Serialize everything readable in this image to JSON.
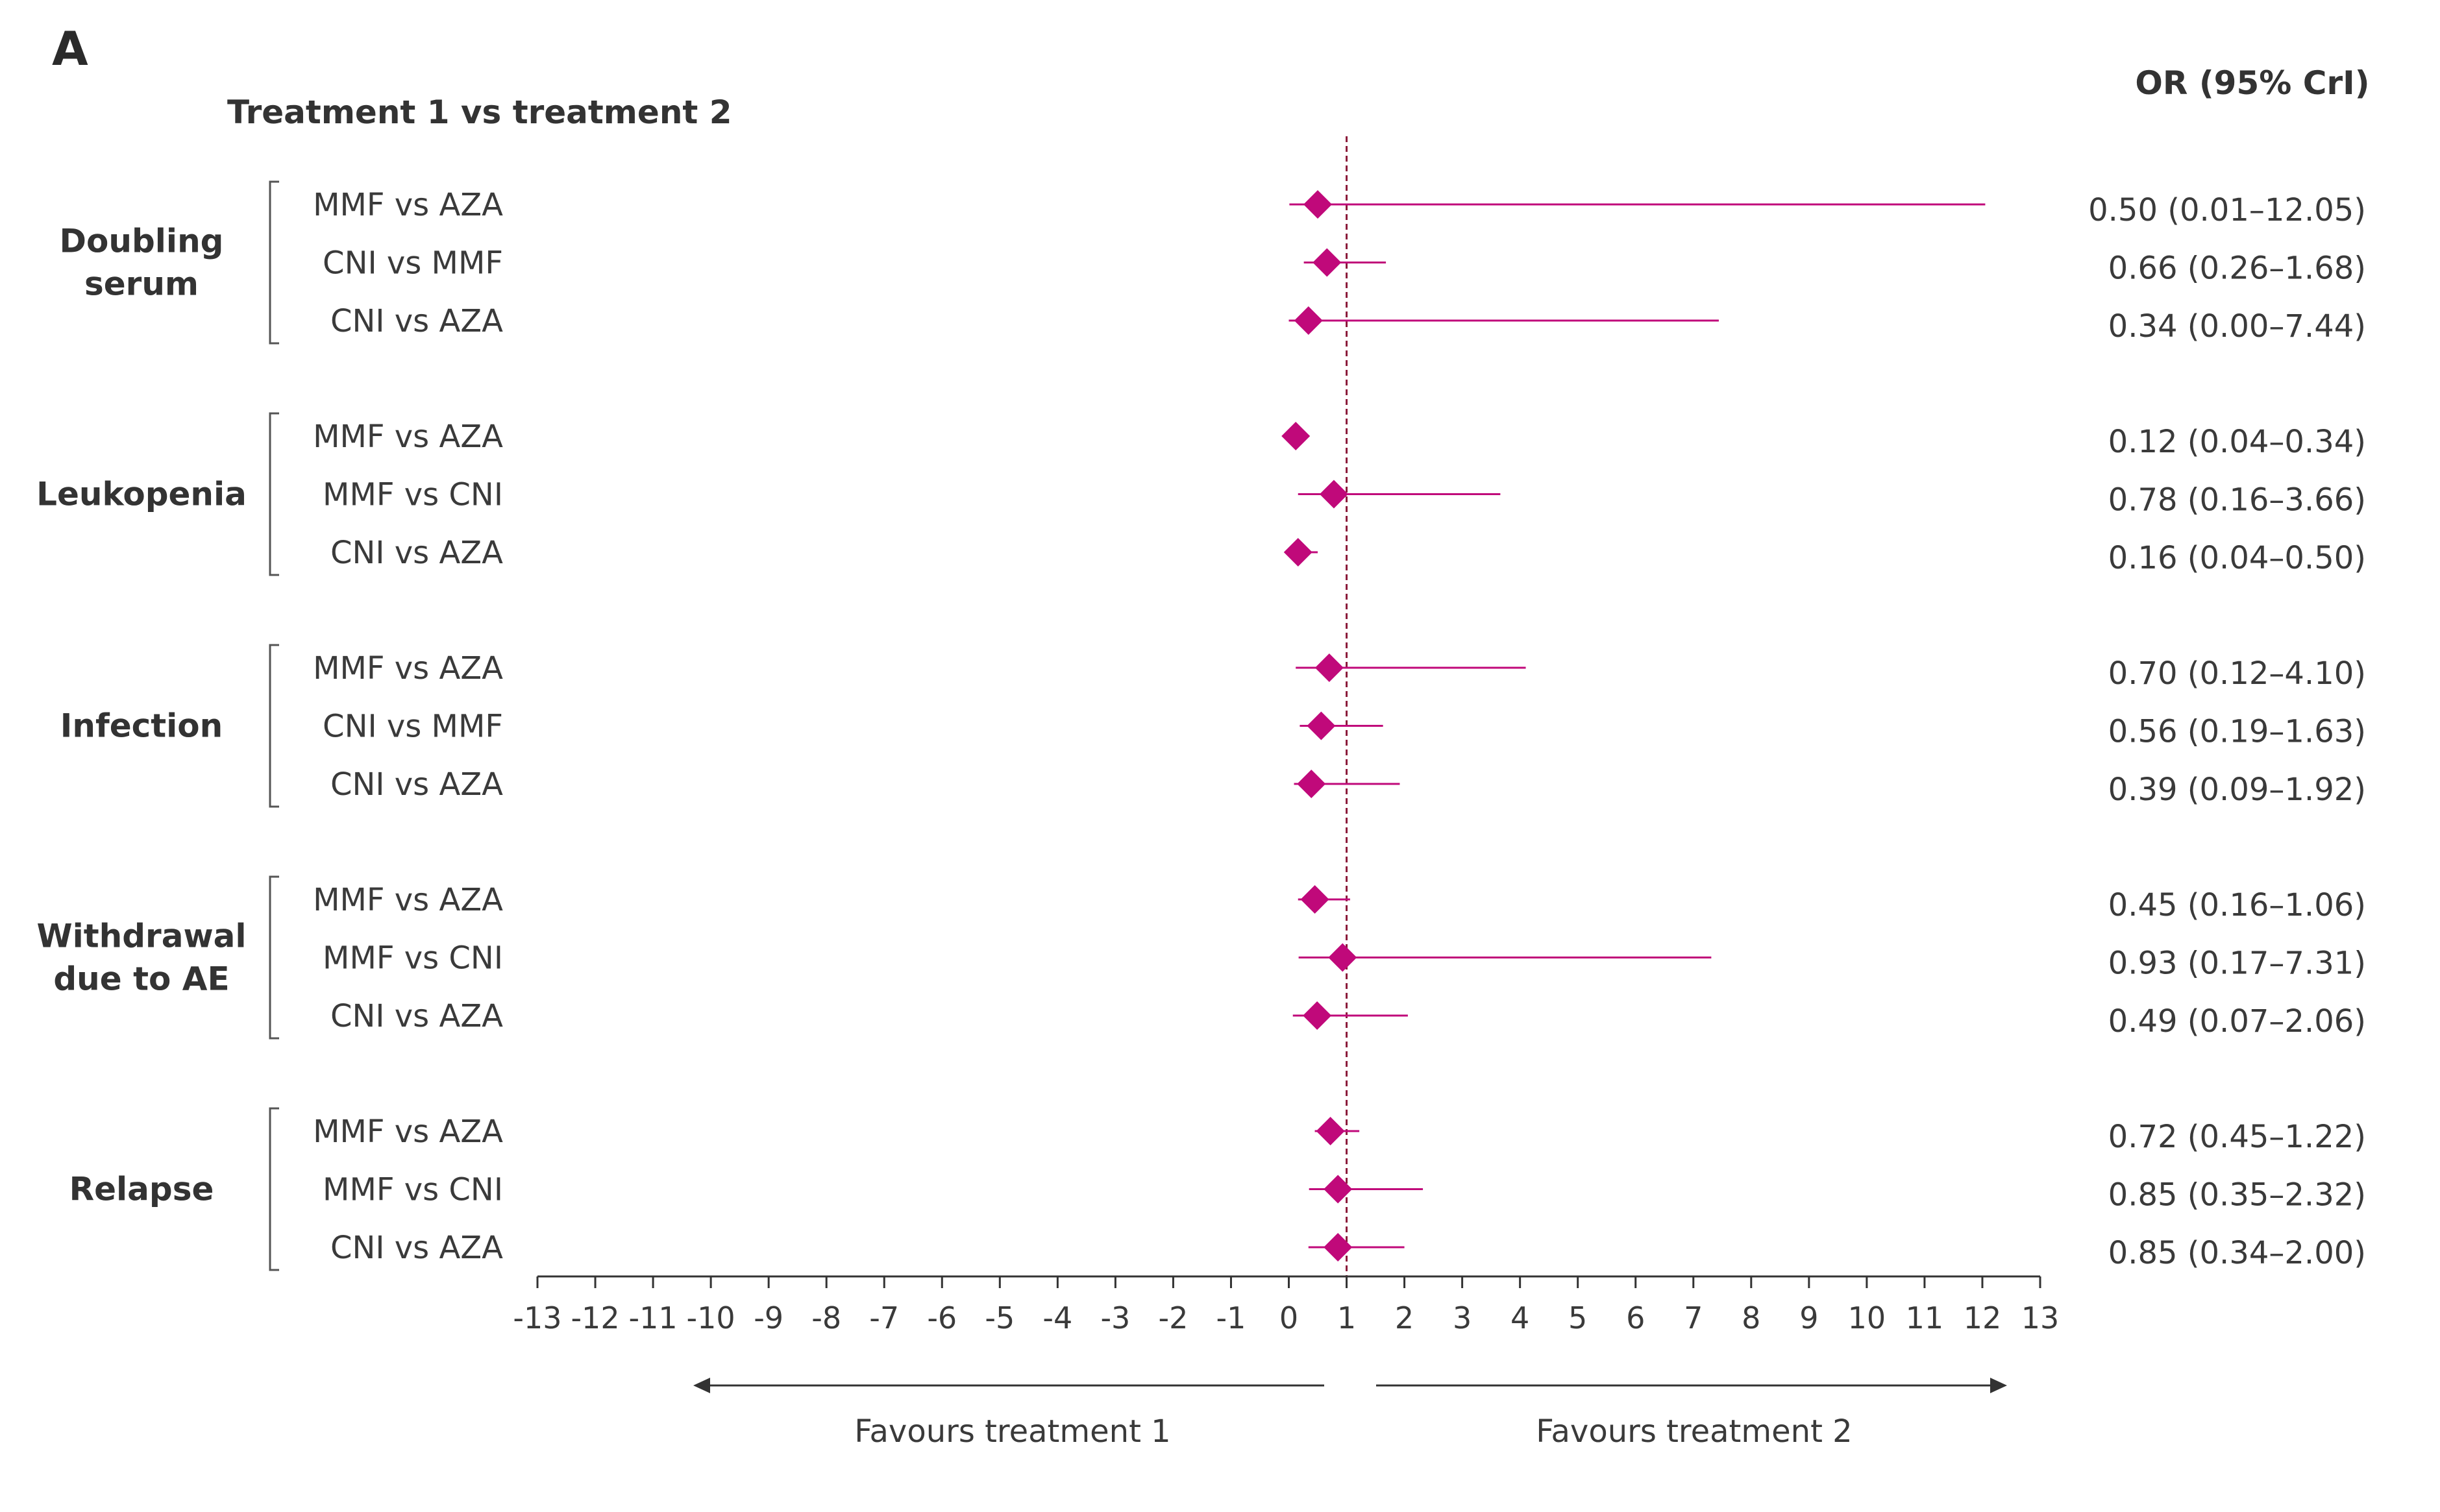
{
  "panel_label": "A",
  "header_left": "Treatment 1 vs treatment 2",
  "header_right": "OR (95% CrI)",
  "favours_left": "Favours treatment 1",
  "favours_right": "Favours treatment 2",
  "colors": {
    "marker": "#c0097a",
    "reference_line": "#8b1a3a",
    "axis": "#333333",
    "bracket": "#555555"
  },
  "chart_data": {
    "type": "forest",
    "xlim": [
      -13,
      13
    ],
    "xticks": [
      "-13",
      "-12",
      "-11",
      "-10",
      "-9",
      "-8",
      "-7",
      "-6",
      "-5",
      "-4",
      "-3",
      "-2",
      "-1",
      "0",
      "1",
      "2",
      "3",
      "4",
      "5",
      "6",
      "7",
      "8",
      "9",
      "10",
      "11",
      "12",
      "13"
    ],
    "reference_line": 1,
    "groups": [
      {
        "label_lines": [
          "Doubling",
          "serum"
        ],
        "rows": [
          {
            "label": "MMF vs AZA",
            "or": 0.5,
            "lo": 0.01,
            "hi": 12.05,
            "text": "0.50 (0.01–12.05)"
          },
          {
            "label": "CNI vs MMF",
            "or": 0.66,
            "lo": 0.26,
            "hi": 1.68,
            "text": "0.66 (0.26–1.68)"
          },
          {
            "label": "CNI vs AZA",
            "or": 0.34,
            "lo": 0.0,
            "hi": 7.44,
            "text": "0.34 (0.00–7.44)"
          }
        ]
      },
      {
        "label_lines": [
          "Leukopenia"
        ],
        "rows": [
          {
            "label": "MMF vs AZA",
            "or": 0.12,
            "lo": 0.04,
            "hi": 0.34,
            "text": "0.12 (0.04–0.34)"
          },
          {
            "label": "MMF vs CNI",
            "or": 0.78,
            "lo": 0.16,
            "hi": 3.66,
            "text": "0.78 (0.16–3.66)"
          },
          {
            "label": "CNI vs AZA",
            "or": 0.16,
            "lo": 0.04,
            "hi": 0.5,
            "text": "0.16 (0.04–0.50)"
          }
        ]
      },
      {
        "label_lines": [
          "Infection"
        ],
        "rows": [
          {
            "label": "MMF vs AZA",
            "or": 0.7,
            "lo": 0.12,
            "hi": 4.1,
            "text": "0.70 (0.12–4.10)"
          },
          {
            "label": "CNI vs MMF",
            "or": 0.56,
            "lo": 0.19,
            "hi": 1.63,
            "text": "0.56 (0.19–1.63)"
          },
          {
            "label": "CNI vs AZA",
            "or": 0.39,
            "lo": 0.09,
            "hi": 1.92,
            "text": "0.39 (0.09–1.92)"
          }
        ]
      },
      {
        "label_lines": [
          "Withdrawal",
          "due to AE"
        ],
        "rows": [
          {
            "label": "MMF vs AZA",
            "or": 0.45,
            "lo": 0.16,
            "hi": 1.06,
            "text": "0.45 (0.16–1.06)"
          },
          {
            "label": "MMF vs CNI",
            "or": 0.93,
            "lo": 0.17,
            "hi": 7.31,
            "text": "0.93 (0.17–7.31)"
          },
          {
            "label": "CNI vs AZA",
            "or": 0.49,
            "lo": 0.07,
            "hi": 2.06,
            "text": "0.49 (0.07–2.06)"
          }
        ]
      },
      {
        "label_lines": [
          "Relapse"
        ],
        "rows": [
          {
            "label": "MMF vs AZA",
            "or": 0.72,
            "lo": 0.45,
            "hi": 1.22,
            "text": "0.72 (0.45–1.22)"
          },
          {
            "label": "MMF vs CNI",
            "or": 0.85,
            "lo": 0.35,
            "hi": 2.32,
            "text": "0.85 (0.35–2.32)"
          },
          {
            "label": "CNI vs AZA",
            "or": 0.85,
            "lo": 0.34,
            "hi": 2.0,
            "text": "0.85 (0.34–2.00)"
          }
        ]
      }
    ]
  }
}
